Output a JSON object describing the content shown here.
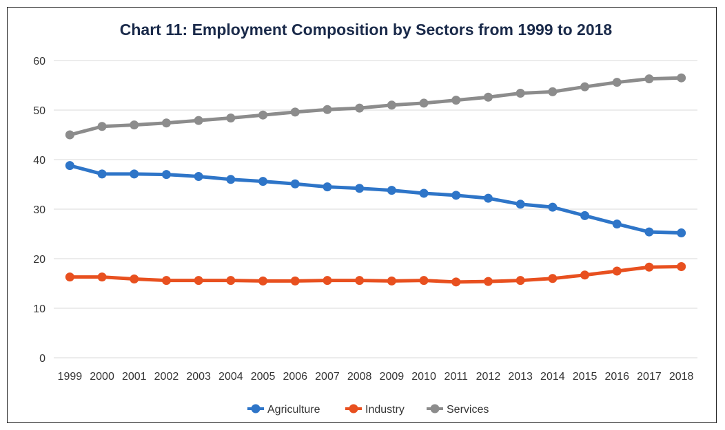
{
  "chart_data": {
    "type": "line",
    "title": "Chart 11: Employment Composition by Sectors from 1999 to 2018",
    "xlabel": "",
    "ylabel": "",
    "ylim": [
      0,
      60
    ],
    "yticks": [
      "0",
      "10",
      "20",
      "30",
      "40",
      "50",
      "60"
    ],
    "grid": true,
    "legend_position": "bottom",
    "categories": [
      "1999",
      "2000",
      "2001",
      "2002",
      "2003",
      "2004",
      "2005",
      "2006",
      "2007",
      "2008",
      "2009",
      "2010",
      "2011",
      "2012",
      "2013",
      "2014",
      "2015",
      "2016",
      "2017",
      "2018"
    ],
    "series": [
      {
        "name": "Agriculture",
        "color": "#2e75c8",
        "values": [
          38.8,
          37.1,
          37.1,
          37.0,
          36.6,
          36.0,
          35.6,
          35.1,
          34.5,
          34.2,
          33.8,
          33.2,
          32.8,
          32.2,
          31.0,
          30.4,
          28.7,
          27.0,
          25.4,
          25.2
        ]
      },
      {
        "name": "Industry",
        "color": "#e8501f",
        "values": [
          16.3,
          16.3,
          15.9,
          15.6,
          15.6,
          15.6,
          15.5,
          15.5,
          15.6,
          15.6,
          15.5,
          15.6,
          15.3,
          15.4,
          15.6,
          16.0,
          16.7,
          17.5,
          18.3,
          18.4
        ]
      },
      {
        "name": "Services",
        "color": "#8c8c8c",
        "values": [
          45.0,
          46.7,
          47.0,
          47.4,
          47.9,
          48.4,
          49.0,
          49.6,
          50.1,
          50.4,
          51.0,
          51.4,
          52.0,
          52.6,
          53.4,
          53.7,
          54.7,
          55.6,
          56.3,
          56.5
        ]
      }
    ]
  }
}
